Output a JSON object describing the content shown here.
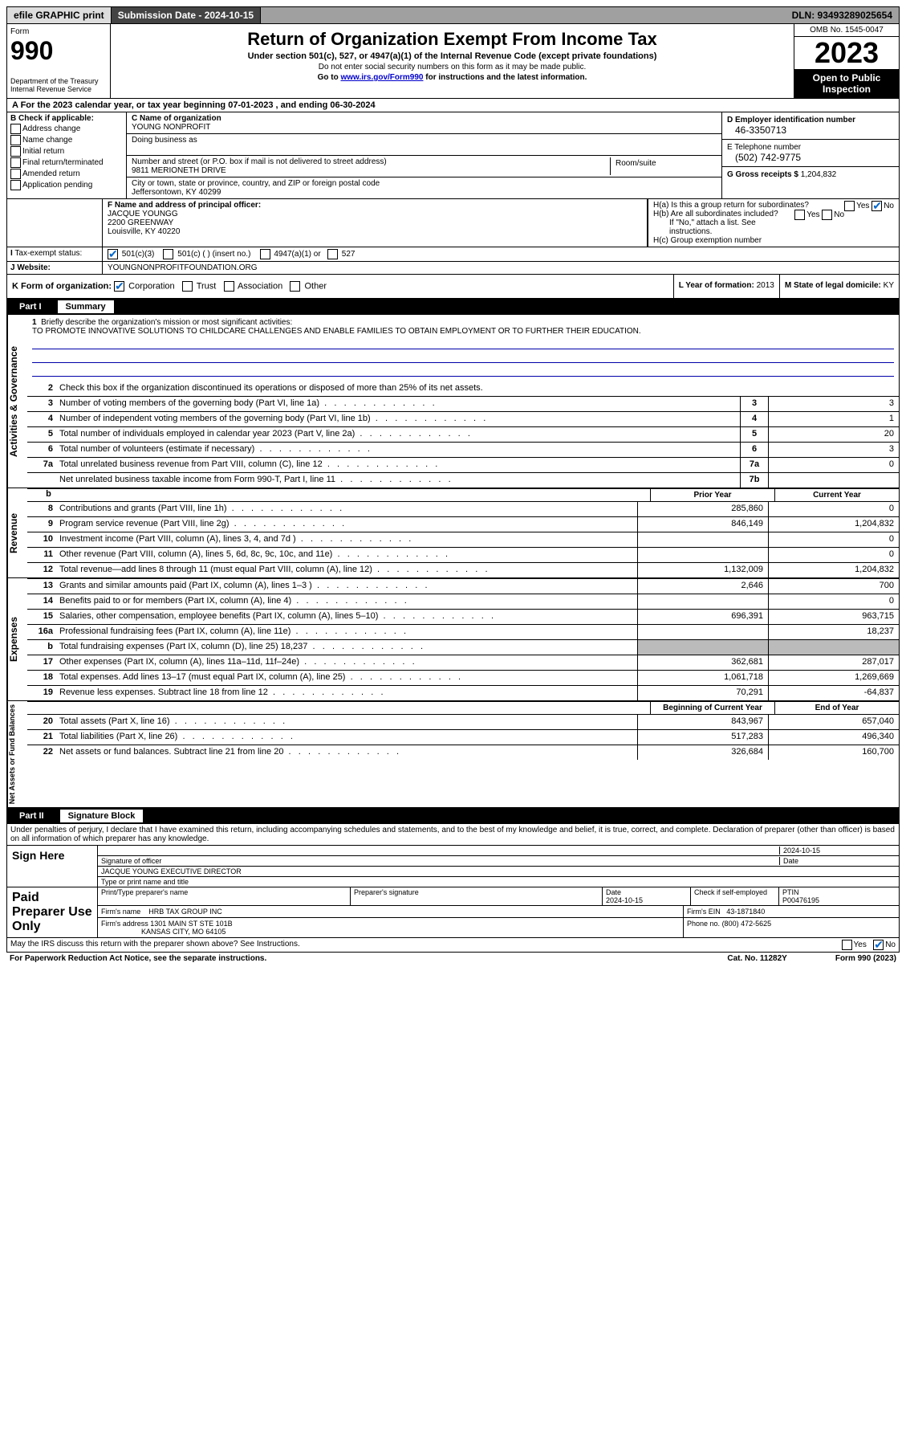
{
  "topbar": {
    "efile_label": "efile GRAPHIC print",
    "submission_label": "Submission Date - 2024-10-15",
    "dln": "DLN: 93493289025654"
  },
  "header": {
    "form_prefix": "Form",
    "form_number": "990",
    "dept": "Department of the Treasury Internal Revenue Service",
    "title": "Return of Organization Exempt From Income Tax",
    "subtitle": "Under section 501(c), 527, or 4947(a)(1) of the Internal Revenue Code (except private foundations)",
    "note1": "Do not enter social security numbers on this form as it may be made public.",
    "note2_pre": "Go to ",
    "note2_link": "www.irs.gov/Form990",
    "note2_post": " for instructions and the latest information.",
    "omb": "OMB No. 1545-0047",
    "year": "2023",
    "open": "Open to Public Inspection"
  },
  "cal_year": {
    "text_pre": "A For the 2023 calendar year, or tax year beginning ",
    "begin": "07-01-2023",
    "mid": " , and ending ",
    "end": "06-30-2024"
  },
  "box_b": {
    "label": "B Check if applicable:",
    "opts": [
      "Address change",
      "Name change",
      "Initial return",
      "Final return/terminated",
      "Amended return",
      "Application pending"
    ]
  },
  "box_c": {
    "name_label": "C Name of organization",
    "name": "YOUNG NONPROFIT",
    "dba_label": "Doing business as",
    "dba": "",
    "street_label": "Number and street (or P.O. box if mail is not delivered to street address)",
    "street": "9811 MERIONETH DRIVE",
    "room_label": "Room/suite",
    "city_label": "City or town, state or province, country, and ZIP or foreign postal code",
    "city": "Jeffersontown, KY  40299"
  },
  "box_d": {
    "ein_label": "D Employer identification number",
    "ein": "46-3350713",
    "phone_label": "E Telephone number",
    "phone": "(502) 742-9775",
    "gross_label": "G Gross receipts $ ",
    "gross": "1,204,832"
  },
  "officer": {
    "f_label": "F  Name and address of principal officer:",
    "name": "JACQUE YOUNGG",
    "addr1": "2200 GREENWAY",
    "addr2": "Louisville, KY  40220",
    "i_label": "Tax-exempt status:",
    "i_501c3": "501(c)(3)",
    "i_501c": "501(c) (  ) (insert no.)",
    "i_4947": "4947(a)(1) or",
    "i_527": "527",
    "j_label": "Website:",
    "j_val": "YOUNGNONPROFITFOUNDATION.ORG"
  },
  "box_h": {
    "ha": "H(a)  Is this a group return for subordinates?",
    "hb": "H(b)  Are all subordinates included?",
    "hb_note": "If \"No,\" attach a list. See instructions.",
    "hc": "H(c)  Group exemption number",
    "yes": "Yes",
    "no": "No"
  },
  "k_row": {
    "k_label": "K Form of organization:",
    "opts": [
      "Corporation",
      "Trust",
      "Association",
      "Other"
    ],
    "l_label": "L Year of formation: ",
    "l_val": "2013",
    "m_label": "M State of legal domicile: ",
    "m_val": "KY"
  },
  "part1": {
    "part": "Part I",
    "title": "Summary",
    "line1_label": "Briefly describe the organization's mission or most significant activities:",
    "line1_text": "TO PROMOTE INNOVATIVE SOLUTIONS TO CHILDCARE CHALLENGES AND ENABLE FAMILIES TO OBTAIN EMPLOYMENT OR TO FURTHER THEIR EDUCATION.",
    "line2": "Check this box      if the organization discontinued its operations or disposed of more than 25% of its net assets.",
    "sideA": "Activities & Governance",
    "sideR": "Revenue",
    "sideE": "Expenses",
    "sideN": "Net Assets or Fund Balances"
  },
  "lines_gov": [
    {
      "n": "3",
      "d": "Number of voting members of the governing body (Part VI, line 1a)",
      "box": "3",
      "v": "3"
    },
    {
      "n": "4",
      "d": "Number of independent voting members of the governing body (Part VI, line 1b)",
      "box": "4",
      "v": "1"
    },
    {
      "n": "5",
      "d": "Total number of individuals employed in calendar year 2023 (Part V, line 2a)",
      "box": "5",
      "v": "20"
    },
    {
      "n": "6",
      "d": "Total number of volunteers (estimate if necessary)",
      "box": "6",
      "v": "3"
    },
    {
      "n": "7a",
      "d": "Total unrelated business revenue from Part VIII, column (C), line 12",
      "box": "7a",
      "v": "0"
    },
    {
      "n": "",
      "d": "Net unrelated business taxable income from Form 990-T, Part I, line 11",
      "box": "7b",
      "v": ""
    }
  ],
  "year_cols": {
    "prior": "Prior Year",
    "current": "Current Year",
    "boy": "Beginning of Current Year",
    "eoy": "End of Year"
  },
  "lines_rev": [
    {
      "n": "8",
      "d": "Contributions and grants (Part VIII, line 1h)",
      "p": "285,860",
      "c": "0"
    },
    {
      "n": "9",
      "d": "Program service revenue (Part VIII, line 2g)",
      "p": "846,149",
      "c": "1,204,832"
    },
    {
      "n": "10",
      "d": "Investment income (Part VIII, column (A), lines 3, 4, and 7d )",
      "p": "",
      "c": "0"
    },
    {
      "n": "11",
      "d": "Other revenue (Part VIII, column (A), lines 5, 6d, 8c, 9c, 10c, and 11e)",
      "p": "",
      "c": "0"
    },
    {
      "n": "12",
      "d": "Total revenue—add lines 8 through 11 (must equal Part VIII, column (A), line 12)",
      "p": "1,132,009",
      "c": "1,204,832"
    }
  ],
  "lines_exp": [
    {
      "n": "13",
      "d": "Grants and similar amounts paid (Part IX, column (A), lines 1–3 )",
      "p": "2,646",
      "c": "700"
    },
    {
      "n": "14",
      "d": "Benefits paid to or for members (Part IX, column (A), line 4)",
      "p": "",
      "c": "0"
    },
    {
      "n": "15",
      "d": "Salaries, other compensation, employee benefits (Part IX, column (A), lines 5–10)",
      "p": "696,391",
      "c": "963,715"
    },
    {
      "n": "16a",
      "d": "Professional fundraising fees (Part IX, column (A), line 11e)",
      "p": "",
      "c": "18,237"
    },
    {
      "n": "b",
      "d": "Total fundraising expenses (Part IX, column (D), line 25) 18,237",
      "p": "SHADE",
      "c": "SHADE"
    },
    {
      "n": "17",
      "d": "Other expenses (Part IX, column (A), lines 11a–11d, 11f–24e)",
      "p": "362,681",
      "c": "287,017"
    },
    {
      "n": "18",
      "d": "Total expenses. Add lines 13–17 (must equal Part IX, column (A), line 25)",
      "p": "1,061,718",
      "c": "1,269,669"
    },
    {
      "n": "19",
      "d": "Revenue less expenses. Subtract line 18 from line 12",
      "p": "70,291",
      "c": "-64,837"
    }
  ],
  "lines_net": [
    {
      "n": "20",
      "d": "Total assets (Part X, line 16)",
      "p": "843,967",
      "c": "657,040"
    },
    {
      "n": "21",
      "d": "Total liabilities (Part X, line 26)",
      "p": "517,283",
      "c": "496,340"
    },
    {
      "n": "22",
      "d": "Net assets or fund balances. Subtract line 21 from line 20",
      "p": "326,684",
      "c": "160,700"
    }
  ],
  "part2": {
    "part": "Part II",
    "title": "Signature Block",
    "intro": "Under penalties of perjury, I declare that I have examined this return, including accompanying schedules and statements, and to the best of my knowledge and belief, it is true, correct, and complete. Declaration of preparer (other than officer) is based on all information of which preparer has any knowledge."
  },
  "sign": {
    "here": "Sign Here",
    "sig_label": "Signature of officer",
    "date_label": "Date",
    "date": "2024-10-15",
    "name_label": "Type or print name and title",
    "name": "JACQUE YOUNG  EXECUTIVE DIRECTOR"
  },
  "prep": {
    "label": "Paid Preparer Use Only",
    "h1": "Print/Type preparer's name",
    "h2": "Preparer's signature",
    "h3": "Date",
    "h3v": "2024-10-15",
    "h4": "Check     if self-employed",
    "h5": "PTIN",
    "h5v": "P00476195",
    "firm_label": "Firm's name",
    "firm": "HRB TAX GROUP INC",
    "ein_label": "Firm's EIN",
    "ein": "43-1871840",
    "addr_label": "Firm's address",
    "addr1": "1301 MAIN ST STE 101B",
    "addr2": "KANSAS CITY, MO  64105",
    "phone_label": "Phone no.",
    "phone": "(800) 472-5625"
  },
  "discuss": {
    "q": "May the IRS discuss this return with the preparer shown above? See Instructions.",
    "yes": "Yes",
    "no": "No"
  },
  "footer": {
    "left": "For Paperwork Reduction Act Notice, see the separate instructions.",
    "mid": "Cat. No. 11282Y",
    "right": "Form 990 (2023)"
  }
}
